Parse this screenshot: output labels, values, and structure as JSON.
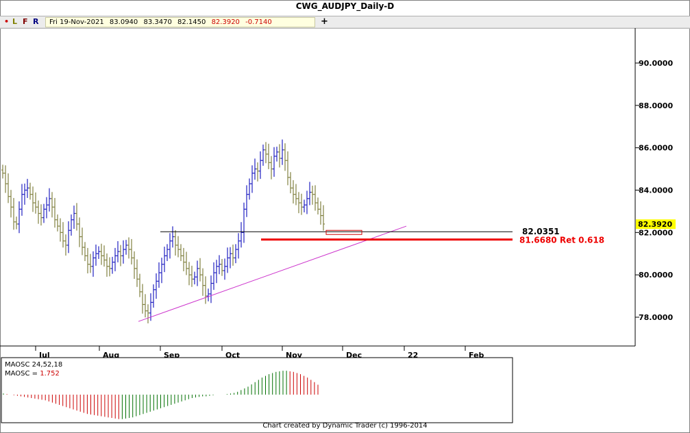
{
  "title": "CWG_AUDJPY_Daily-D",
  "toolbar": {
    "dot": "•",
    "l": "L",
    "f": "F",
    "r": "R",
    "plus": "+",
    "date": "Fri 19-Nov-2021",
    "open": "83.0940",
    "high": "83.3470",
    "low": "82.1450",
    "close": "82.3920",
    "change": "-0.7140"
  },
  "credit": "Chart created by Dynamic Trader  (c)  1996-2014",
  "colors": {
    "up": "#2020c0",
    "down": "#808040",
    "trend": "#cc33cc",
    "ret": "#ee0000",
    "last_bg": "#ffff00",
    "osc_up": "#007000",
    "osc_down": "#cc0000"
  },
  "chart_data": {
    "type": "ohlc",
    "ylim": [
      76.8,
      91.5
    ],
    "yticks": [
      "78.0000",
      "80.0000",
      "82.0000",
      "84.0000",
      "86.0000",
      "88.0000",
      "90.0000"
    ],
    "xlabels": [
      "Jul",
      "Aug",
      "Sep",
      "Oct",
      "Nov",
      "Dec",
      "22",
      "Feb"
    ],
    "last_price": "82.3920",
    "levels": [
      {
        "label": "82.0351",
        "value": 82.0351,
        "color": "#000000"
      },
      {
        "label": "81.6680 Ret 0.618",
        "value": 81.668,
        "color": "#ee0000"
      }
    ],
    "trendline": {
      "start": [
        "Aug 18",
        77.8
      ],
      "end": [
        "Dec 28",
        82.3
      ]
    },
    "closes": [
      84.8,
      84.3,
      83.7,
      83.2,
      82.5,
      82.4,
      83.1,
      83.8,
      84.0,
      84.1,
      83.8,
      83.4,
      83.2,
      82.9,
      82.7,
      83.1,
      83.3,
      83.6,
      83.2,
      82.6,
      82.3,
      82.0,
      81.6,
      81.4,
      82.1,
      82.6,
      82.9,
      82.4,
      81.8,
      81.3,
      80.9,
      80.5,
      80.4,
      80.8,
      81.0,
      81.1,
      80.9,
      80.7,
      80.4,
      80.3,
      80.6,
      80.9,
      81.1,
      80.9,
      81.2,
      81.4,
      81.2,
      80.8,
      80.3,
      79.8,
      79.2,
      78.6,
      78.3,
      78.2,
      78.7,
      79.3,
      79.7,
      80.1,
      80.5,
      80.9,
      81.2,
      81.6,
      81.8,
      81.4,
      81.2,
      80.9,
      80.6,
      80.3,
      80.0,
      79.8,
      79.9,
      80.3,
      80.0,
      79.5,
      79.0,
      79.1,
      79.6,
      80.1,
      80.4,
      80.5,
      80.2,
      80.4,
      80.8,
      81.0,
      80.8,
      81.2,
      81.6,
      82.0,
      83.1,
      83.8,
      84.3,
      84.8,
      85.0,
      84.9,
      85.4,
      85.9,
      85.7,
      85.3,
      85.0,
      85.6,
      85.8,
      85.5,
      85.9,
      85.4,
      84.6,
      84.1,
      83.8,
      83.6,
      83.4,
      83.2,
      83.3,
      83.6,
      83.9,
      83.8,
      83.4,
      83.1,
      82.8,
      82.4
    ],
    "oscillator": {
      "label": "MAOSC 24,52,18",
      "value_label": "MAOSC = ",
      "value": "1.752",
      "values": [
        0.2,
        0.1,
        0.0,
        -0.1,
        -0.2,
        -0.3,
        -0.4,
        -0.5,
        -0.6,
        -0.7,
        -0.8,
        -0.9,
        -1.0,
        -1.2,
        -1.4,
        -1.6,
        -1.8,
        -2.0,
        -2.2,
        -2.4,
        -2.6,
        -2.8,
        -3.0,
        -3.2,
        -3.4,
        -3.5,
        -3.6,
        -3.7,
        -3.8,
        -3.9,
        -4.0,
        -4.1,
        -4.2,
        -4.3,
        -4.3,
        -4.2,
        -4.1,
        -4.0,
        -3.8,
        -3.6,
        -3.4,
        -3.2,
        -3.0,
        -2.8,
        -2.6,
        -2.4,
        -2.2,
        -2.0,
        -1.8,
        -1.6,
        -1.4,
        -1.2,
        -1.0,
        -0.8,
        -0.6,
        -0.5,
        -0.4,
        -0.3,
        -0.3,
        -0.2,
        -0.1,
        0.0,
        0.0,
        0.0,
        0.1,
        0.2,
        0.3,
        0.5,
        0.8,
        1.1,
        1.4,
        1.8,
        2.2,
        2.6,
        3.0,
        3.3,
        3.6,
        3.8,
        4.0,
        4.1,
        4.2,
        4.2,
        4.1,
        4.0,
        3.8,
        3.6,
        3.3,
        3.0,
        2.6,
        2.2,
        1.752
      ]
    }
  }
}
